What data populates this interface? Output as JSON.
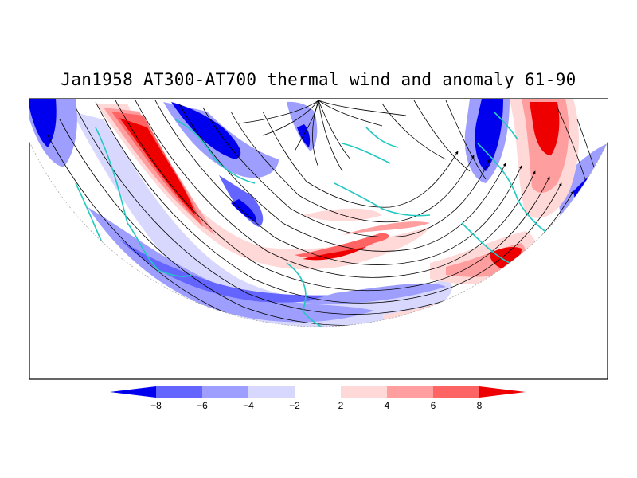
{
  "title": "Jan1958 AT300-AT700 thermal wind and anomaly 61-90",
  "colorbar": {
    "levels": [
      "-8",
      "-6",
      "-4",
      "-2",
      "2",
      "4",
      "6",
      "8"
    ],
    "colors": [
      "#0000ee",
      "#6464ff",
      "#9e9eff",
      "#d8d8ff",
      "#ffffff",
      "#ffd8d8",
      "#ff9e9e",
      "#ff6464",
      "#ee0000"
    ]
  },
  "colors": {
    "coastline": "#20c8c0",
    "streamline": "#000000",
    "frame": "#000000"
  }
}
